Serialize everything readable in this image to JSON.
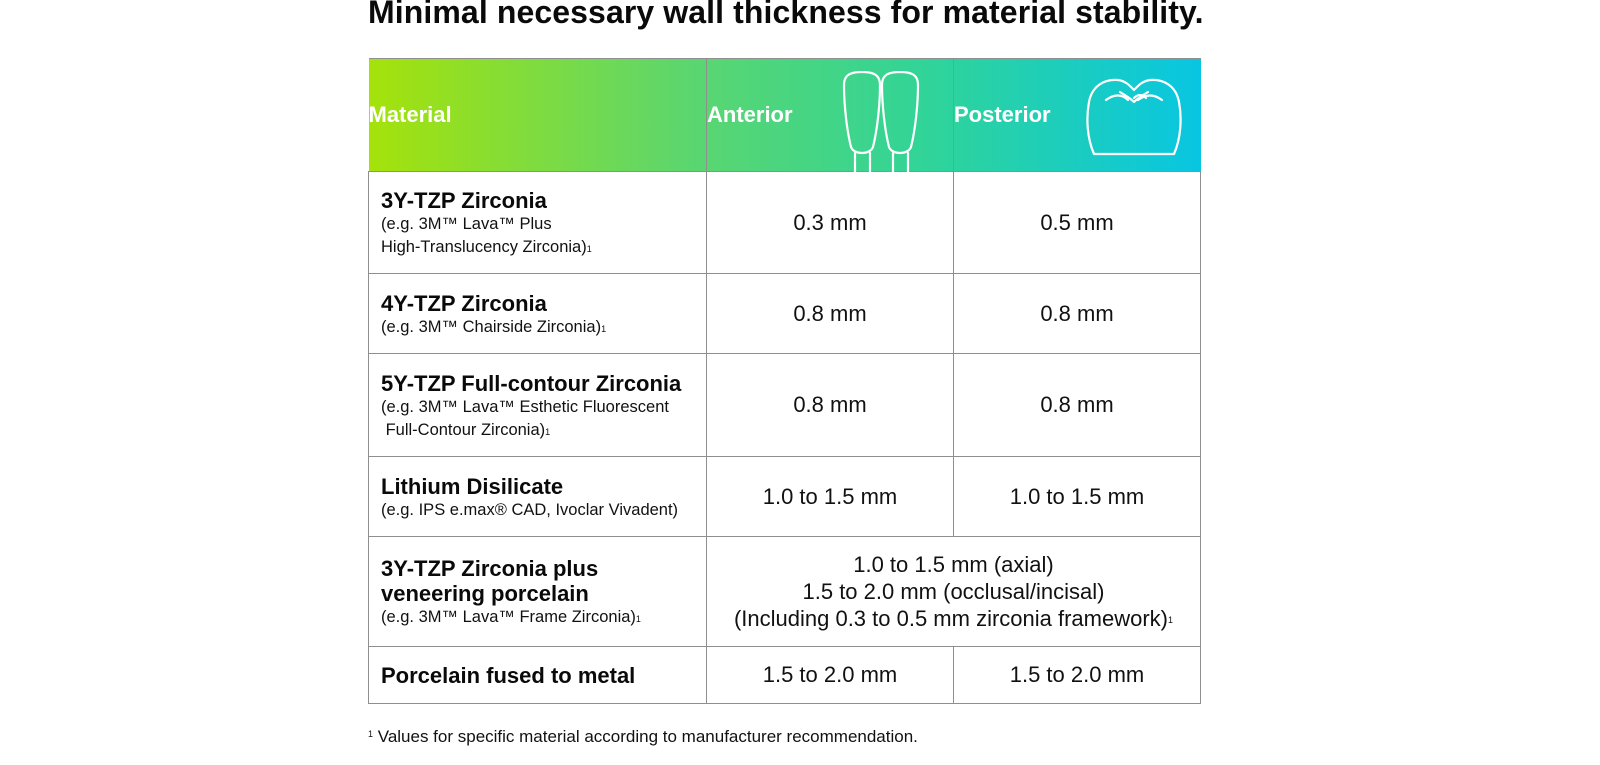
{
  "title": "Minimal necessary wall thickness for material stability.",
  "table": {
    "headers": {
      "material": "Material",
      "anterior": "Anterior",
      "posterior": "Posterior",
      "anterior_icon": "anterior-teeth-icon",
      "posterior_icon": "molar-tooth-icon"
    },
    "rows": [
      {
        "name": "3Y-TZP Zirconia",
        "example_line1": "(e.g. 3M™ Lava™ Plus",
        "example_line2": "High-Translucency Zirconia)",
        "footnote_mark": "1",
        "anterior": "0.3 mm",
        "posterior": "0.5 mm"
      },
      {
        "name": "4Y-TZP Zirconia",
        "example_line1": "(e.g. 3M™ Chairside Zirconia)",
        "footnote_mark": "1",
        "anterior": "0.8 mm",
        "posterior": "0.8 mm"
      },
      {
        "name": "5Y-TZP Full-contour Zirconia",
        "example_line1": "(e.g. 3M™ Lava™ Esthetic Fluorescent",
        "example_line2": " Full-Contour Zirconia)",
        "footnote_mark": "1",
        "anterior": "0.8 mm",
        "posterior": "0.8 mm"
      },
      {
        "name": "Lithium Disilicate",
        "example_line1": "(e.g. IPS e.max® CAD, Ivoclar Vivadent)",
        "anterior": "1.0 to 1.5 mm",
        "posterior": "1.0 to 1.5 mm"
      },
      {
        "name_line1": "3Y-TZP Zirconia plus",
        "name_line2": "veneering porcelain",
        "example_line1": "(e.g. 3M™ Lava™ Frame Zirconia)",
        "footnote_mark": "1",
        "combined_line1": "1.0 to 1.5 mm (axial)",
        "combined_line2": "1.5 to 2.0 mm (occlusal/incisal)",
        "combined_line3": "(Including 0.3 to 0.5 mm zirconia framework)",
        "combined_footnote_mark": "1"
      },
      {
        "name": "Porcelain fused to metal",
        "anterior": "1.5 to 2.0 mm",
        "posterior": "1.5 to 2.0 mm"
      }
    ]
  },
  "footnote": {
    "mark": "1",
    "text": " Values for specific material according to manufacturer recommendation."
  },
  "colors": {
    "gradient_start": "#a5e20a",
    "gradient_end": "#08c6e2",
    "border": "#8f8f8f"
  }
}
